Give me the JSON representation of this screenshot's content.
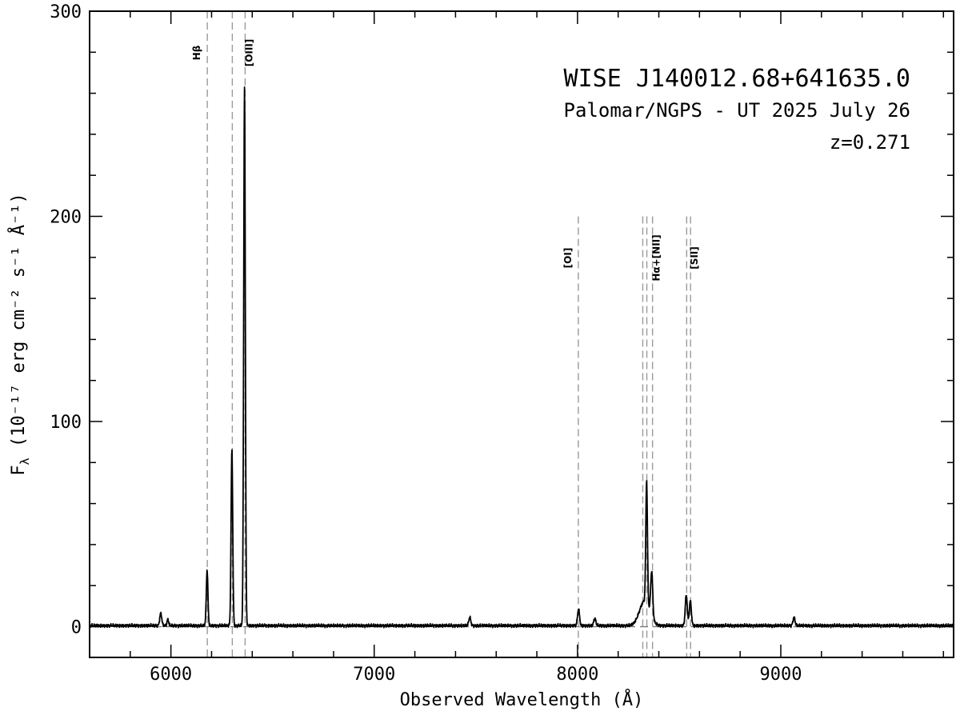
{
  "chart_data": {
    "type": "line",
    "title": "WISE J140012.68+641635.0",
    "subtitle": "Palomar/NGPS - UT 2025 July 26",
    "redshift_label": "z=0.271",
    "xlabel": "Observed Wavelength (Å)",
    "ylabel": "F",
    "ylabel_sub": "λ",
    "ylabel_units": "(10⁻¹⁷ erg cm⁻² s⁻¹ Å⁻¹)",
    "xlim": [
      5600,
      9850
    ],
    "ylim": [
      -15,
      300
    ],
    "x_ticks": [
      6000,
      7000,
      8000,
      9000
    ],
    "x_tick_labels": [
      "6000",
      "7000",
      "8000",
      "9000"
    ],
    "y_ticks": [
      0,
      100,
      200,
      300
    ],
    "y_tick_labels": [
      "0",
      "100",
      "200",
      "300"
    ],
    "continuum_level": 0.5,
    "zero_line": 0,
    "emission_lines": [
      {
        "x": 5950,
        "peak": 6,
        "width": 5
      },
      {
        "x": 5985,
        "peak": 3,
        "width": 4
      },
      {
        "x": 6178,
        "peak": 27,
        "width": 4
      },
      {
        "x": 6300,
        "peak": 86,
        "width": 4
      },
      {
        "x": 6362,
        "peak": 263,
        "width": 4
      },
      {
        "x": 7470,
        "peak": 4,
        "width": 5
      },
      {
        "x": 8005,
        "peak": 8,
        "width": 5
      },
      {
        "x": 8085,
        "peak": 3.5,
        "width": 5
      },
      {
        "x": 8330,
        "peak": 12,
        "width": 25
      },
      {
        "x": 8340,
        "peak": 60,
        "width": 4
      },
      {
        "x": 8365,
        "peak": 22,
        "width": 5
      },
      {
        "x": 8535,
        "peak": 15,
        "width": 5
      },
      {
        "x": 8555,
        "peak": 12,
        "width": 5
      },
      {
        "x": 9065,
        "peak": 4,
        "width": 5
      }
    ],
    "line_markers": [
      {
        "label": "Hβ",
        "lines": [
          6179
        ],
        "top": 300
      },
      {
        "label": "[OIII]",
        "lines": [
          6302,
          6365
        ],
        "top": 300
      },
      {
        "label": "[OI]",
        "lines": [
          8004
        ],
        "top": 200
      },
      {
        "label": "Hα+[NII]",
        "lines": [
          8321,
          8341,
          8369
        ],
        "top": 200
      },
      {
        "label": "[SII]",
        "lines": [
          8537,
          8556
        ],
        "top": 200
      }
    ]
  }
}
